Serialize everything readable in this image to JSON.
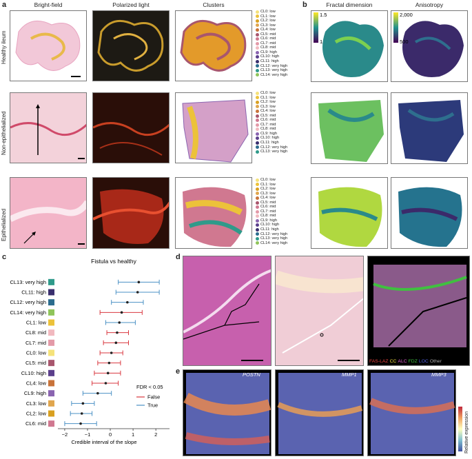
{
  "panel_a": {
    "label": "a",
    "columns": [
      "Bright-field",
      "Polarized light",
      "Clusters"
    ],
    "rows": [
      "Healthy ileum",
      "Non-epithelialized",
      "Epithelialized"
    ],
    "legend_healthy": [
      {
        "text": "CL0: low",
        "color": "#f5e27a"
      },
      {
        "text": "CL1: low",
        "color": "#ecc23a"
      },
      {
        "text": "CL2: low",
        "color": "#d9a020"
      },
      {
        "text": "CL3: low",
        "color": "#e0a64e"
      },
      {
        "text": "CL4: low",
        "color": "#c8733a"
      },
      {
        "text": "CL5: mid",
        "color": "#a8566d"
      },
      {
        "text": "CL6: mid",
        "color": "#d07890"
      },
      {
        "text": "CL7: mid",
        "color": "#e39aa8"
      },
      {
        "text": "CL8: mid",
        "color": "#f1b9bf"
      },
      {
        "text": "CL9: high",
        "color": "#8a64b0"
      },
      {
        "text": "CL10: high",
        "color": "#5b3f8c"
      },
      {
        "text": "CL11: high",
        "color": "#3a2f6e"
      },
      {
        "text": "CL12: very high",
        "color": "#2b6c8e"
      },
      {
        "text": "CL13: very high",
        "color": "#2f9a8a"
      },
      {
        "text": "CL14: very high",
        "color": "#8fc45a"
      }
    ],
    "legend_nonepi": [
      {
        "text": "CL0: low",
        "color": "#f5e27a"
      },
      {
        "text": "CL1: low",
        "color": "#ecc23a"
      },
      {
        "text": "CL2: low",
        "color": "#d9a020"
      },
      {
        "text": "CL3: low",
        "color": "#e0a64e"
      },
      {
        "text": "CL4: low",
        "color": "#c8733a"
      },
      {
        "text": "CL5: mid",
        "color": "#a8566d"
      },
      {
        "text": "CL6: mid",
        "color": "#d07890"
      },
      {
        "text": "CL7: mid",
        "color": "#e39aa8"
      },
      {
        "text": "CL8: mid",
        "color": "#f1b9bf"
      },
      {
        "text": "CL9: high",
        "color": "#8a64b0"
      },
      {
        "text": "CL10: high",
        "color": "#5b3f8c"
      },
      {
        "text": "CL11: high",
        "color": "#3a2f6e"
      },
      {
        "text": "CL12: very high",
        "color": "#2b6c8e"
      },
      {
        "text": "CL13: very high",
        "color": "#2f9a8a"
      }
    ],
    "legend_epi": [
      {
        "text": "CL0: low",
        "color": "#f5e27a"
      },
      {
        "text": "CL1: low",
        "color": "#ecc23a"
      },
      {
        "text": "CL2: low",
        "color": "#d9a020"
      },
      {
        "text": "CL3: low",
        "color": "#e0a64e"
      },
      {
        "text": "CL4: low",
        "color": "#c8733a"
      },
      {
        "text": "CL5: mid",
        "color": "#a8566d"
      },
      {
        "text": "CL6: mid",
        "color": "#d07890"
      },
      {
        "text": "CL7: mid",
        "color": "#e39aa8"
      },
      {
        "text": "CL8: mid",
        "color": "#f1b9bf"
      },
      {
        "text": "CL9: high",
        "color": "#8a64b0"
      },
      {
        "text": "CL10: high",
        "color": "#5b3f8c"
      },
      {
        "text": "CL11: high",
        "color": "#3a2f6e"
      },
      {
        "text": "CL12: very high",
        "color": "#2b6c8e"
      },
      {
        "text": "CL13: very high",
        "color": "#2f9a8a"
      },
      {
        "text": "CL14: very high",
        "color": "#8fc45a"
      }
    ]
  },
  "panel_b": {
    "label": "b",
    "columns": [
      "Fractal dimension",
      "Anisotropy"
    ],
    "fractal_colorbar": {
      "max": "1.5",
      "min": "1"
    },
    "aniso_colorbar": {
      "max": "2,000",
      "min": "500"
    }
  },
  "panel_c": {
    "label": "c",
    "chart_data": {
      "type": "scatter",
      "title": "Fistula vs healthy",
      "xlabel": "Credible interval of the slope",
      "xlim": [
        -2.3,
        2.6
      ],
      "xticks": [
        "−2",
        "−1",
        "0",
        "1",
        "2"
      ],
      "categories": [
        "CL13: very high",
        "CL11: high",
        "CL12: very high",
        "CL14: very high",
        "CL1: low",
        "CL8: mid",
        "CL7: mid",
        "CL0: low",
        "CL5: mid",
        "CL10: high",
        "CL4: low",
        "CL9: high",
        "CL3: low",
        "CL2: low",
        "CL6: mid"
      ],
      "swatch_colors": [
        "#2f9a8a",
        "#3a2f6e",
        "#2b6c8e",
        "#8fc45a",
        "#ecc23a",
        "#f1b9bf",
        "#e39aa8",
        "#f5e27a",
        "#a8566d",
        "#5b3f8c",
        "#c8733a",
        "#8a64b0",
        "#e0a64e",
        "#d9a020",
        "#d07890"
      ],
      "series": [
        {
          "name": "True",
          "color": "#4a90c4"
        },
        {
          "name": "False",
          "color": "#d9363e"
        }
      ],
      "points": [
        {
          "cat": "CL13: very high",
          "mean": 1.25,
          "lo": 0.35,
          "hi": 2.15,
          "fdr": "True"
        },
        {
          "cat": "CL11: high",
          "mean": 1.2,
          "lo": 0.25,
          "hi": 2.15,
          "fdr": "True"
        },
        {
          "cat": "CL12: very high",
          "mean": 0.75,
          "lo": 0.05,
          "hi": 1.45,
          "fdr": "True"
        },
        {
          "cat": "CL14: very high",
          "mean": 0.5,
          "lo": -0.45,
          "hi": 1.4,
          "fdr": "False"
        },
        {
          "cat": "CL1: low",
          "mean": 0.4,
          "lo": -0.2,
          "hi": 1.1,
          "fdr": "True"
        },
        {
          "cat": "CL8: mid",
          "mean": 0.3,
          "lo": -0.15,
          "hi": 0.8,
          "fdr": "False"
        },
        {
          "cat": "CL7: mid",
          "mean": 0.25,
          "lo": -0.3,
          "hi": 0.8,
          "fdr": "False"
        },
        {
          "cat": "CL0: low",
          "mean": 0.05,
          "lo": -0.45,
          "hi": 0.55,
          "fdr": "False"
        },
        {
          "cat": "CL5: mid",
          "mean": -0.05,
          "lo": -0.55,
          "hi": 0.45,
          "fdr": "False"
        },
        {
          "cat": "CL10: high",
          "mean": -0.1,
          "lo": -0.7,
          "hi": 0.45,
          "fdr": "False"
        },
        {
          "cat": "CL4: low",
          "mean": -0.2,
          "lo": -0.8,
          "hi": 0.35,
          "fdr": "False"
        },
        {
          "cat": "CL9: high",
          "mean": -0.55,
          "lo": -1.2,
          "hi": 0.05,
          "fdr": "True"
        },
        {
          "cat": "CL3: low",
          "mean": -1.2,
          "lo": -1.7,
          "hi": -0.7,
          "fdr": "True"
        },
        {
          "cat": "CL2: low",
          "mean": -1.25,
          "lo": -1.75,
          "hi": -0.8,
          "fdr": "True"
        },
        {
          "cat": "CL6: mid",
          "mean": -1.3,
          "lo": -2.0,
          "hi": -0.6,
          "fdr": "True"
        }
      ],
      "legend_title": "FDR < 0.05",
      "legend_placement": "bottom-right"
    }
  },
  "panel_d": {
    "label": "d",
    "legend_items": [
      {
        "text": "FAS-LAZ",
        "color": "#e8403c"
      },
      {
        "text": "CC",
        "color": "#f0e040"
      },
      {
        "text": "ALC",
        "color": "#e060d0"
      },
      {
        "text": "FDZ",
        "color": "#40c040"
      },
      {
        "text": "LOC",
        "color": "#5060e0"
      },
      {
        "text": "Other",
        "color": "#aaaaaa"
      }
    ]
  },
  "panel_e": {
    "label": "e",
    "genes": [
      "POSTN",
      "MMP1",
      "MMP3"
    ],
    "colorbar_label": "Relative expression"
  }
}
